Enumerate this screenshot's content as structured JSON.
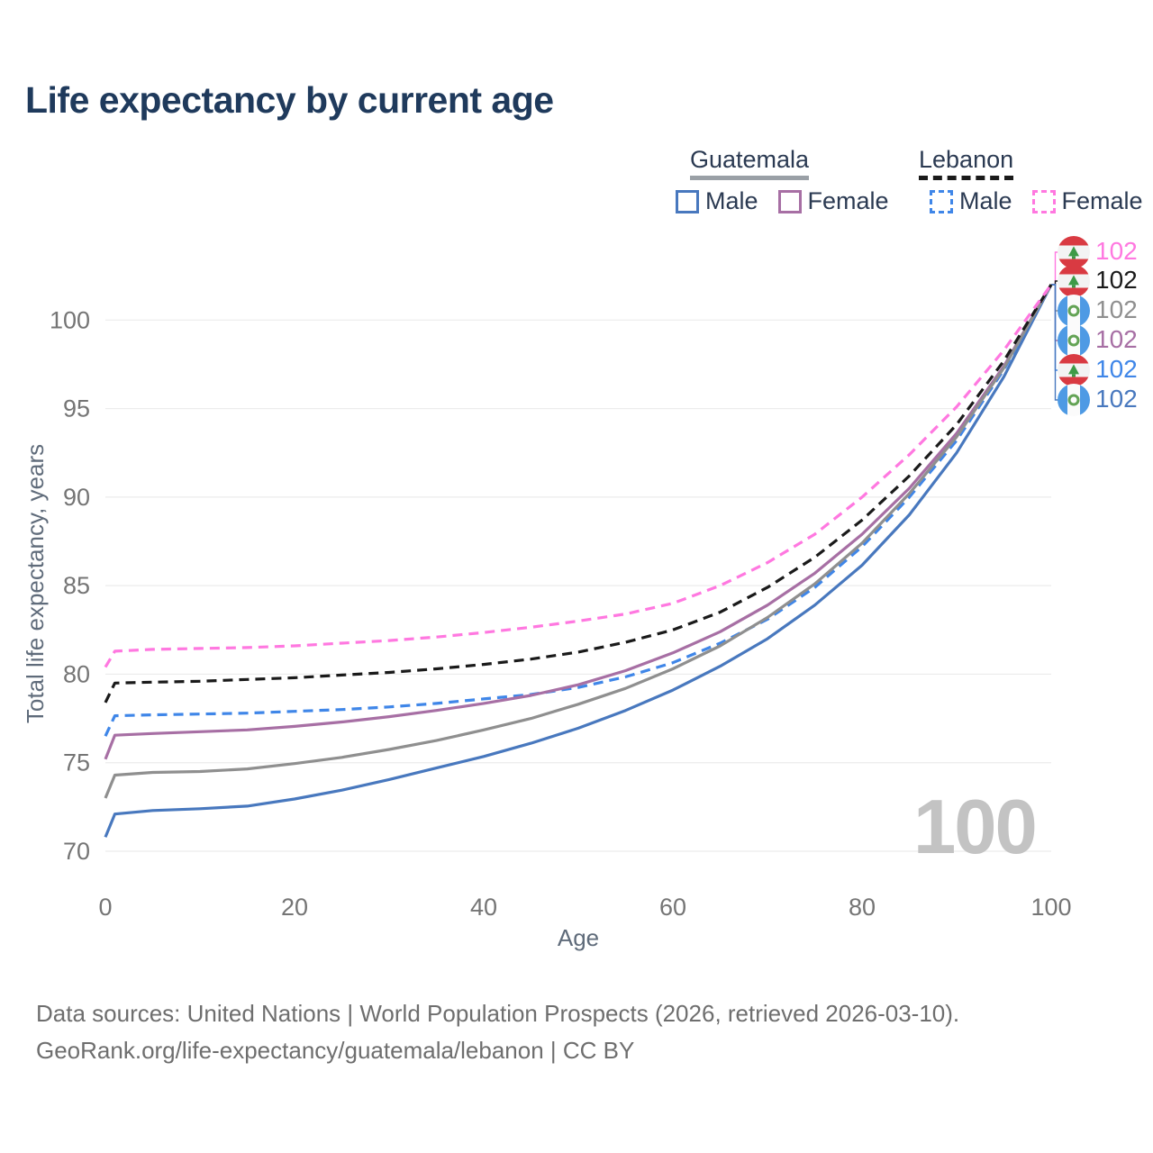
{
  "header": {
    "title": "Life expectancy by current age"
  },
  "legend": {
    "groups": [
      {
        "label": "Guatemala",
        "line_style": "solid",
        "underline_color": "#9aa0a6",
        "items": [
          {
            "label": "Male",
            "color": "#4878be",
            "dash": false
          },
          {
            "label": "Female",
            "color": "#a76fa4",
            "dash": false
          }
        ]
      },
      {
        "label": "Lebanon",
        "line_style": "dashed",
        "underline_color": "#1a1a1a",
        "items": [
          {
            "label": "Male",
            "color": "#3f86e8",
            "dash": true
          },
          {
            "label": "Female",
            "color": "#ff78e0",
            "dash": true
          }
        ]
      }
    ]
  },
  "chart_data": {
    "type": "line",
    "title": "Life expectancy by current age",
    "xlabel": "Age",
    "ylabel": "Total life expectancy, years",
    "xlim": [
      0,
      100
    ],
    "ylim": [
      69,
      103.5
    ],
    "xticks": [
      0,
      20,
      40,
      60,
      80,
      100
    ],
    "yticks": [
      70,
      75,
      80,
      85,
      90,
      95,
      100
    ],
    "grid": "horizontal",
    "legend_position": "top-right",
    "watermark": "100",
    "x": [
      0,
      1,
      5,
      10,
      15,
      20,
      25,
      30,
      35,
      40,
      45,
      50,
      55,
      60,
      65,
      70,
      75,
      80,
      85,
      90,
      95,
      100
    ],
    "series": [
      {
        "name": "Lebanon Female",
        "country": "Lebanon",
        "flag": "leb",
        "color": "#ff78e0",
        "dash": true,
        "end_label": "102",
        "values": [
          80.4,
          81.3,
          81.4,
          81.45,
          81.5,
          81.6,
          81.75,
          81.9,
          82.1,
          82.35,
          82.65,
          83.0,
          83.4,
          84.0,
          85.0,
          86.3,
          87.9,
          90.0,
          92.4,
          95.1,
          98.3,
          102
        ]
      },
      {
        "name": "Lebanon",
        "country": "Lebanon",
        "flag": "leb",
        "color": "#1a1a1a",
        "dash": true,
        "end_label": "102",
        "values": [
          78.4,
          79.5,
          79.55,
          79.6,
          79.7,
          79.8,
          79.95,
          80.1,
          80.3,
          80.55,
          80.85,
          81.25,
          81.8,
          82.5,
          83.5,
          84.9,
          86.6,
          88.7,
          91.2,
          94.1,
          97.7,
          102
        ]
      },
      {
        "name": "Guatemala",
        "country": "Guatemala",
        "flag": "gua",
        "color": "#8f8f8f",
        "dash": false,
        "end_label": "102",
        "values": [
          73.0,
          74.3,
          74.45,
          74.5,
          74.65,
          74.95,
          75.3,
          75.75,
          76.25,
          76.85,
          77.5,
          78.3,
          79.2,
          80.3,
          81.6,
          83.2,
          85.1,
          87.4,
          90.2,
          93.4,
          97.3,
          102
        ]
      },
      {
        "name": "Guatemala Female",
        "country": "Guatemala",
        "flag": "gua",
        "color": "#a76fa4",
        "dash": false,
        "end_label": "102",
        "values": [
          75.2,
          76.55,
          76.65,
          76.75,
          76.85,
          77.05,
          77.3,
          77.6,
          77.95,
          78.35,
          78.8,
          79.4,
          80.2,
          81.2,
          82.4,
          83.9,
          85.7,
          87.9,
          90.5,
          93.6,
          97.4,
          102
        ]
      },
      {
        "name": "Lebanon Male",
        "country": "Lebanon",
        "flag": "leb",
        "color": "#3f86e8",
        "dash": true,
        "end_label": "102",
        "values": [
          76.5,
          77.65,
          77.7,
          77.75,
          77.8,
          77.9,
          78.0,
          78.15,
          78.35,
          78.6,
          78.85,
          79.25,
          79.85,
          80.65,
          81.75,
          83.1,
          84.9,
          87.2,
          90.0,
          93.2,
          97.2,
          102
        ]
      },
      {
        "name": "Guatemala Male",
        "country": "Guatemala",
        "flag": "gua",
        "color": "#4878be",
        "dash": false,
        "end_label": "102",
        "values": [
          70.8,
          72.1,
          72.3,
          72.4,
          72.55,
          72.95,
          73.45,
          74.05,
          74.7,
          75.35,
          76.1,
          76.95,
          77.95,
          79.1,
          80.45,
          82.0,
          83.9,
          86.15,
          89.0,
          92.5,
          96.8,
          102
        ]
      }
    ]
  },
  "footer": {
    "line1": "Data sources: United Nations | World Population Prospects (2026, retrieved 2026-03-10).",
    "line2": "GeoRank.org/life-expectancy/guatemala/lebanon | CC BY"
  }
}
